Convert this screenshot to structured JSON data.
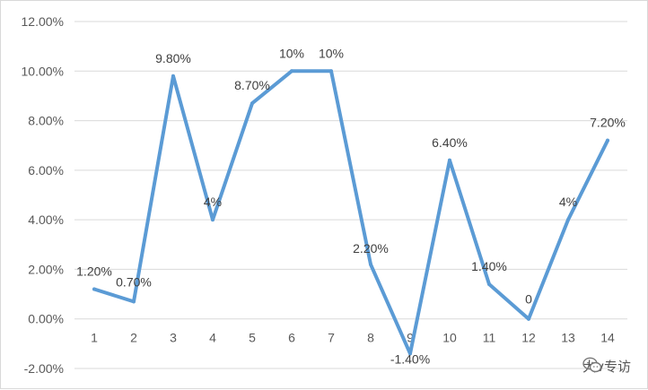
{
  "chart_data": {
    "type": "line",
    "x": [
      1,
      2,
      3,
      4,
      5,
      6,
      7,
      8,
      9,
      10,
      11,
      12,
      13,
      14
    ],
    "values": [
      1.2,
      0.7,
      9.8,
      4,
      8.7,
      10,
      10,
      2.2,
      -1.4,
      6.4,
      1.4,
      0,
      4,
      7.2
    ],
    "data_labels": [
      "1.20%",
      "0.70%",
      "9.80%",
      "4%",
      "8.70%",
      "10%",
      "10%",
      "2.20%",
      "-1.40%",
      "6.40%",
      "1.40%",
      "0",
      "4%",
      "7.20%"
    ],
    "y_ticks": [
      -2,
      0,
      2,
      4,
      6,
      8,
      10,
      12
    ],
    "y_tick_labels": [
      "-2.00%",
      "0.00%",
      "2.00%",
      "4.00%",
      "6.00%",
      "8.00%",
      "10.00%",
      "12.00%"
    ],
    "x_tick_labels": [
      "1",
      "2",
      "3",
      "4",
      "5",
      "6",
      "7",
      "8",
      "9",
      "10",
      "11",
      "12",
      "13",
      "14"
    ],
    "ylim": [
      -2,
      12
    ],
    "grid": true,
    "series_color": "#5b9bd5",
    "title": "",
    "xlabel": "",
    "ylabel": ""
  },
  "watermark": {
    "text": "大v专访",
    "icon": "wechat-icon"
  }
}
